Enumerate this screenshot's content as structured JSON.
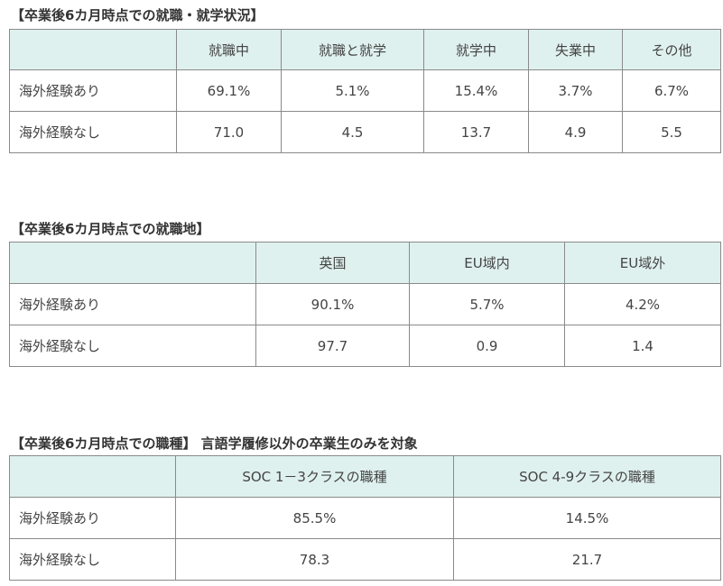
{
  "section1": {
    "title": "【卒業後6カ月時点での就職・就学状況】",
    "headers": [
      "就職中",
      "就職と就学",
      "就学中",
      "失業中",
      "その他"
    ],
    "rows": [
      {
        "label": "海外経験あり",
        "values": [
          "69.1%",
          "5.1%",
          "15.4%",
          "3.7%",
          "6.7%"
        ]
      },
      {
        "label": "海外経験なし",
        "values": [
          "71.0",
          "4.5",
          "13.7",
          "4.9",
          "5.5"
        ]
      }
    ]
  },
  "section2": {
    "title": "【卒業後6カ月時点での就職地】",
    "headers": [
      "英国",
      "EU域内",
      "EU域外"
    ],
    "rows": [
      {
        "label": "海外経験あり",
        "values": [
          "90.1%",
          "5.7%",
          "4.2%"
        ]
      },
      {
        "label": "海外経験なし",
        "values": [
          "97.7",
          "0.9",
          "1.4"
        ]
      }
    ]
  },
  "section3": {
    "title": "【卒業後6カ月時点での職種】 言語学履修以外の卒業生のみを対象",
    "headers": [
      "SOC 1－3クラスの職種",
      "SOC 4-9クラスの職種"
    ],
    "rows": [
      {
        "label": "海外経験あり",
        "values": [
          "85.5%",
          "14.5%"
        ]
      },
      {
        "label": "海外経験なし",
        "values": [
          "78.3",
          "21.7"
        ]
      }
    ]
  }
}
